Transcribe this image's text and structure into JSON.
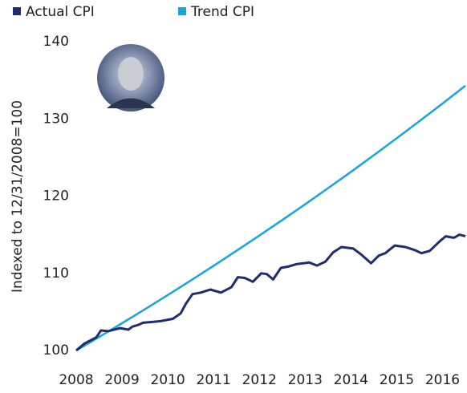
{
  "chart_data": {
    "type": "line",
    "y_label": "Indexed to 12/31/2008=100",
    "series": [
      {
        "name": "Actual CPI",
        "color": "#1f2d6e",
        "x": [
          2008,
          2008.18,
          2008.44,
          2008.54,
          2008.7,
          2008.96,
          2009.14,
          2009.23,
          2009.35,
          2009.46,
          2009.67,
          2009.84,
          2010.11,
          2010.28,
          2010.4,
          2010.54,
          2010.72,
          2010.93,
          2011.16,
          2011.39,
          2011.53,
          2011.68,
          2011.86,
          2012.04,
          2012.16,
          2012.3,
          2012.47,
          2012.65,
          2012.82,
          2013.09,
          2013.26,
          2013.44,
          2013.61,
          2013.79,
          2014.05,
          2014.23,
          2014.44,
          2014.61,
          2014.75,
          2014.96,
          2015.19,
          2015.4,
          2015.54,
          2015.72,
          2015.95,
          2016.07,
          2016.25,
          2016.37,
          2016.5
        ],
        "values": [
          100,
          100.9,
          101.7,
          102.6,
          102.5,
          102.9,
          102.7,
          103.1,
          103.3,
          103.6,
          103.7,
          103.8,
          104.1,
          104.8,
          106.1,
          107.3,
          107.5,
          107.9,
          107.5,
          108.2,
          109.5,
          109.4,
          108.9,
          110.0,
          109.9,
          109.2,
          110.7,
          110.9,
          111.2,
          111.4,
          111.0,
          111.5,
          112.7,
          113.4,
          113.2,
          112.4,
          111.3,
          112.3,
          112.6,
          113.6,
          113.4,
          113.0,
          112.6,
          112.9,
          114.2,
          114.8,
          114.6,
          115.0,
          114.8
        ]
      },
      {
        "name": "Trend CPI",
        "color": "#1aa3dc",
        "x": [
          2008,
          2008.5,
          2009,
          2009.5,
          2010,
          2010.5,
          2011,
          2011.5,
          2012,
          2012.5,
          2013,
          2013.5,
          2014,
          2014.5,
          2015,
          2015.5,
          2016,
          2016.5
        ],
        "values": [
          100,
          101.75,
          103.53,
          105.34,
          107.19,
          109.06,
          110.97,
          112.91,
          114.89,
          116.9,
          118.94,
          121.03,
          123.14,
          125.3,
          127.49,
          129.72,
          131.99,
          134.3
        ]
      }
    ],
    "xlim": [
      2008,
      2016.5
    ],
    "xticks": [
      2008,
      2009,
      2010,
      2011,
      2012,
      2013,
      2014,
      2015,
      2016
    ],
    "ylim": [
      100,
      140
    ],
    "yticks": [
      100,
      110,
      120,
      130,
      140
    ],
    "grid": false
  }
}
